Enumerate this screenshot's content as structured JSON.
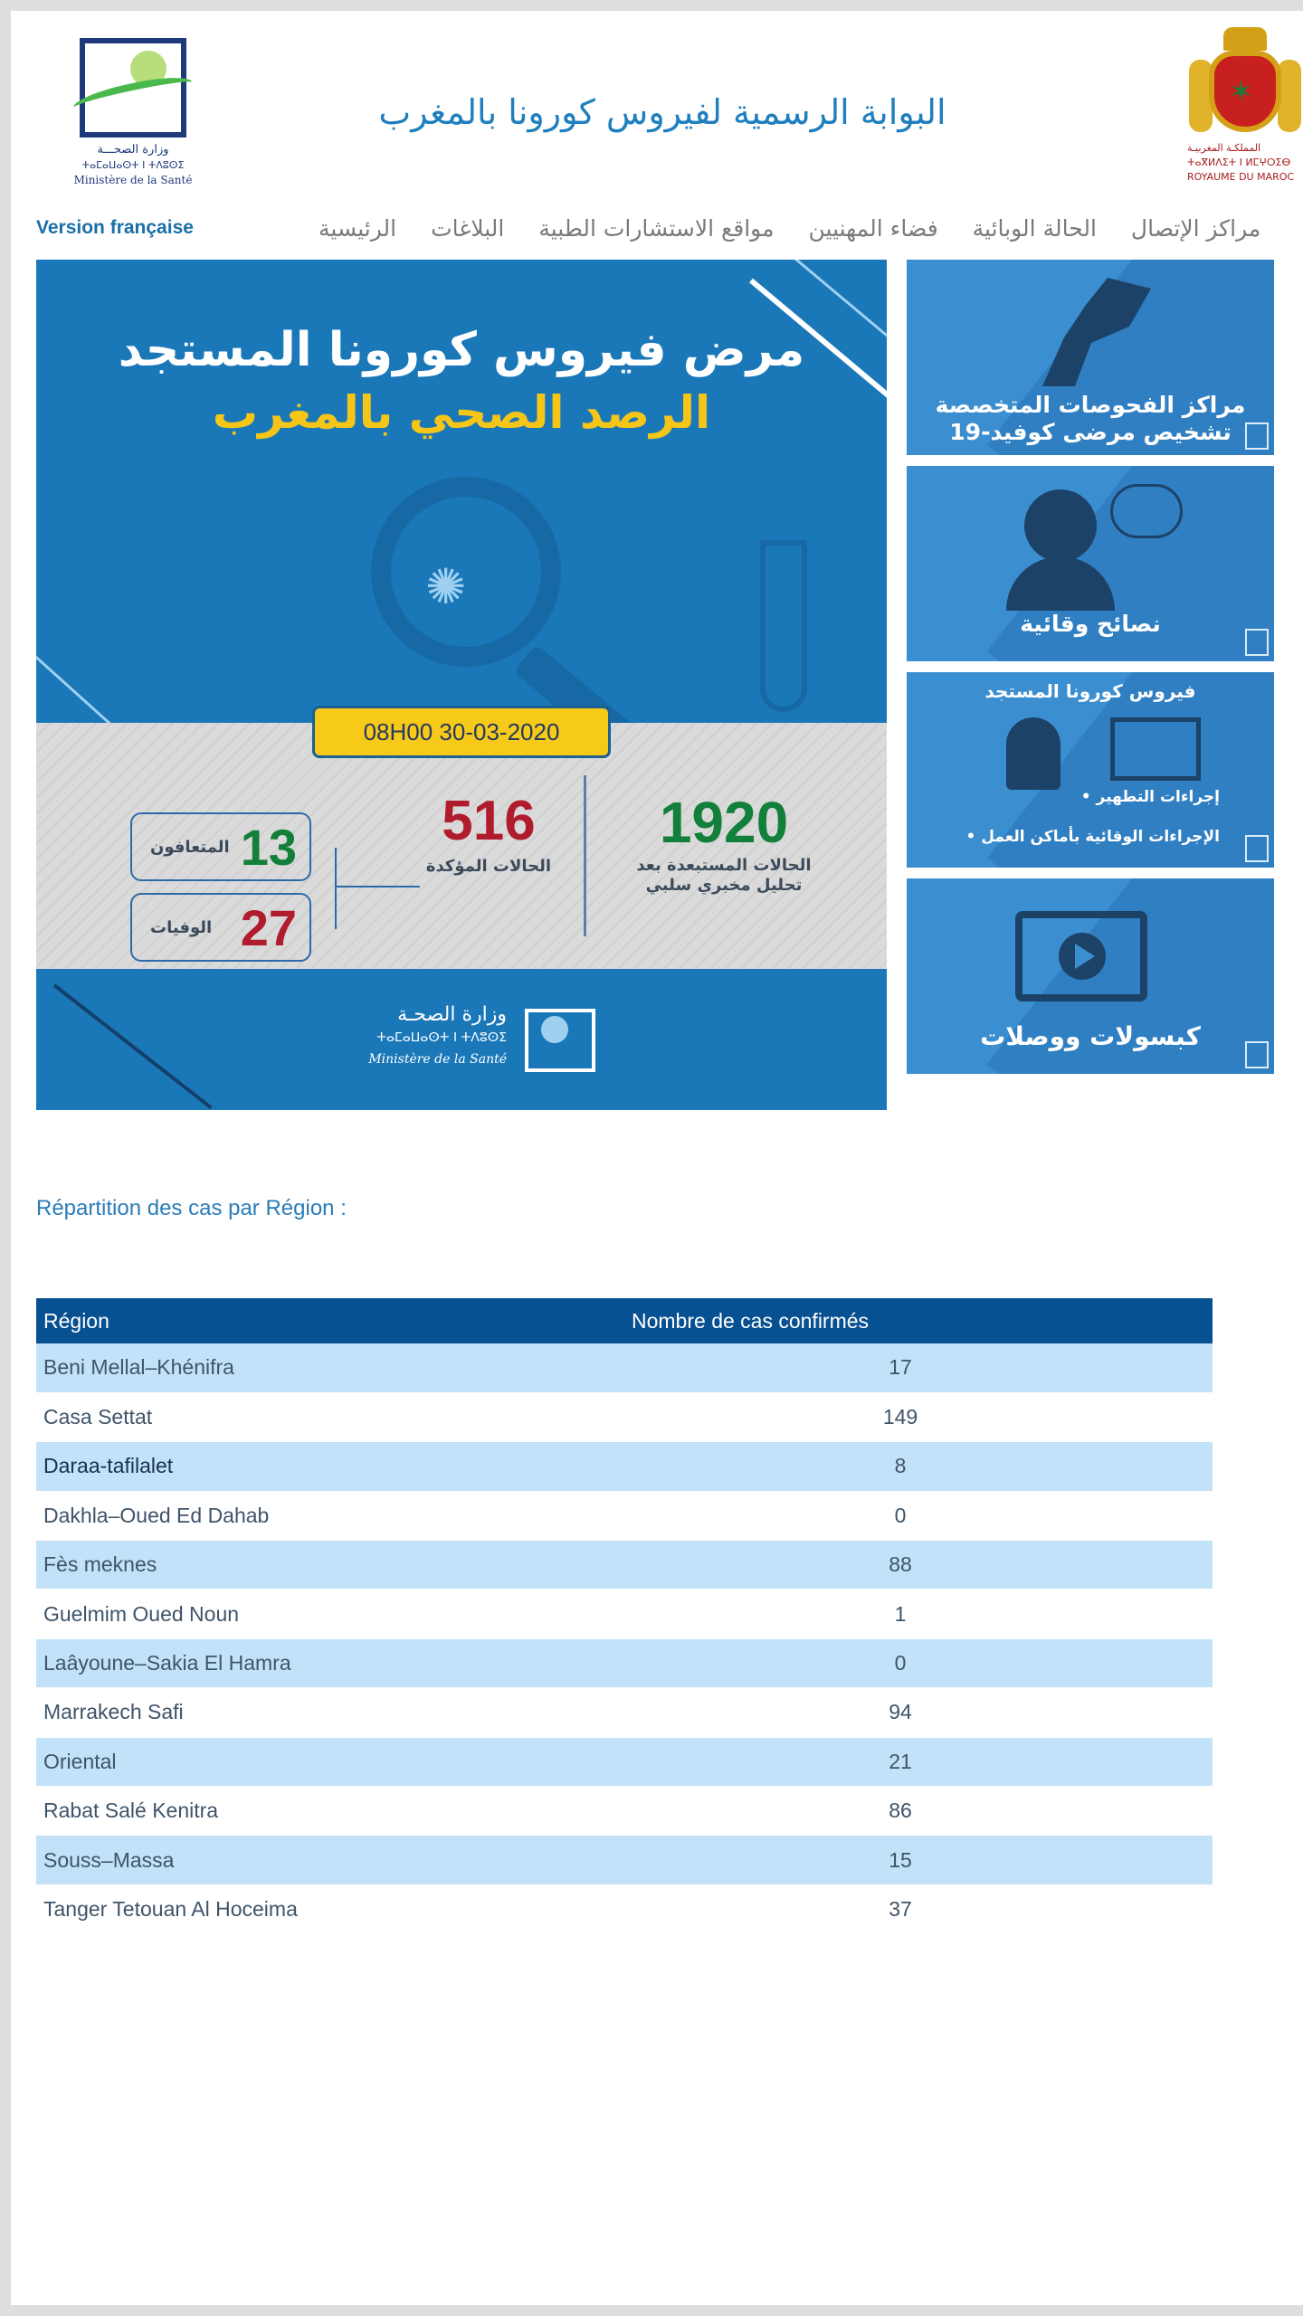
{
  "header": {
    "site_title": "البوابة الرسمية لفيروس كورونا بالمغرب",
    "ministry_logo": {
      "arabic": "وزارة الصحـــة",
      "tifinagh": "ⵜⴰⵎⴰⵡⴰⵙⵜ ⵏ ⵜⴷⵓⵙⵉ",
      "french": "Ministère de la Santé"
    },
    "royal_emblem": {
      "arabic": "المملكـة المغربيـة",
      "tifinagh": "ⵜⴰⴳⵍⴷⵉⵜ ⵏ ⵍⵎⵖⵔⵉⴱ",
      "french": "ROYAUME DU MAROC"
    }
  },
  "nav": {
    "version_link": "Version française",
    "items": [
      "الرئيسية",
      "البلاغات",
      "مواقع الاستشارات الطبية",
      "فضاء المهنيين",
      "الحالة الوبائية",
      "مراكز الإتصال"
    ]
  },
  "hero": {
    "title": "مرض فيروس كورونا المستجد",
    "subtitle": "الرصد الصحي بالمغرب",
    "date": "08H00  30-03-2020",
    "excluded": {
      "value": "1920",
      "label_1": "الحالات المستبعدة بعد",
      "label_2": "تحليل مخبري سلبي"
    },
    "confirmed": {
      "value": "516",
      "label": "الحالات المؤكدة"
    },
    "recovered": {
      "value": "13",
      "label": "المتعافون"
    },
    "deaths": {
      "value": "27",
      "label": "الوفيات"
    },
    "footer_logo": {
      "arabic": "وزارة الصحـة",
      "tifinagh": "ⵜⴰⵎⴰⵡⴰⵙⵜ ⵏ ⵜⴷⵓⵙⵉ",
      "french": "Ministère de la Santé"
    }
  },
  "side_cards": [
    {
      "title_1": "مراكز الفحوصات المتخصصة",
      "title_2": "تشخيص مرضى كوفيد-19"
    },
    {
      "title": "نصائح وقائية"
    },
    {
      "title": "فيروس كورونا المستجد",
      "item_1": "إجراءات التطهير •",
      "item_2": "الإجراءات الوقائية بأماكن العمل •"
    },
    {
      "title": "كبسولات ووصلات"
    }
  ],
  "regions": {
    "heading": "Répartition des cas par Région :",
    "columns": [
      "Région",
      "Nombre de cas confirmés"
    ],
    "rows": [
      {
        "name": "Beni Mellal–Khénifra",
        "count": "17"
      },
      {
        "name": "Casa Settat",
        "count": "149"
      },
      {
        "name": "Daraa-tafilalet",
        "count": "8"
      },
      {
        "name": "Dakhla–Oued Ed Dahab",
        "count": "0"
      },
      {
        "name": "Fès meknes",
        "count": "88"
      },
      {
        "name": "Guelmim Oued Noun",
        "count": "1"
      },
      {
        "name": "Laâyoune–Sakia El Hamra",
        "count": "0"
      },
      {
        "name": "Marrakech Safi",
        "count": "94"
      },
      {
        "name": "Oriental",
        "count": "21"
      },
      {
        "name": "Rabat Salé Kenitra",
        "count": "86"
      },
      {
        "name": "Souss–Massa",
        "count": "15"
      },
      {
        "name": "Tanger Tetouan Al Hoceima",
        "count": "37"
      }
    ]
  }
}
